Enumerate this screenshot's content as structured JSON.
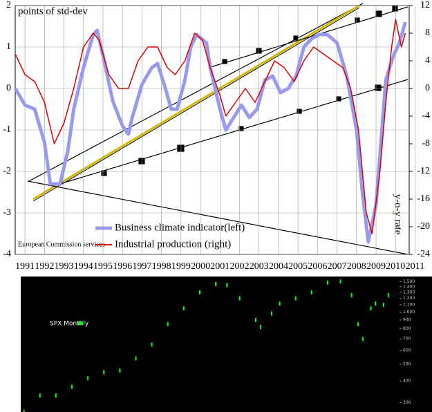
{
  "chart_data": [
    {
      "type": "line",
      "ylabel": "points of std-dev",
      "y2label": "y-o-y rate",
      "annotation": "European Commission services",
      "xlim": [
        1990.5,
        2010.7
      ],
      "xticks": [
        1991,
        1992,
        1993,
        1994,
        1995,
        1996,
        1997,
        1998,
        1999,
        2000,
        2001,
        2002,
        2003,
        2004,
        2005,
        2006,
        2007,
        2008,
        2009,
        2010,
        2011
      ],
      "ylim": [
        -4,
        2
      ],
      "yticks": [
        -4,
        -3,
        -2,
        -1,
        0,
        1,
        2
      ],
      "y2lim": [
        -24,
        12
      ],
      "y2ticks": [
        -24,
        -20,
        -16,
        -12,
        -8,
        -4,
        0,
        4,
        8,
        12
      ],
      "grid": true,
      "series": [
        {
          "name": "Business climate indicator(left)",
          "color": "#9999ee",
          "x": [
            1990.5,
            1991,
            1991.5,
            1992,
            1992.3,
            1992.8,
            1993.2,
            1993.5,
            1994,
            1994.5,
            1994.7,
            1995,
            1995.5,
            1996,
            1996.3,
            1996.5,
            1997,
            1997.5,
            1997.8,
            1998.2,
            1998.5,
            1998.8,
            1999.2,
            1999.5,
            1999.8,
            2000.3,
            2000.5,
            2001,
            2001.3,
            2001.7,
            2002.1,
            2002.5,
            2002.9,
            2003.3,
            2003.7,
            2004.1,
            2004.5,
            2004.9,
            2005.3,
            2005.7,
            2006.1,
            2006.5,
            2007,
            2007.5,
            2008,
            2008.3,
            2008.6,
            2009,
            2009.3,
            2009.5,
            2009.9,
            2010.2,
            2010.5
          ],
          "values": [
            0,
            -0.4,
            -0.5,
            -1.3,
            -2.3,
            -2.3,
            -1.5,
            -0.5,
            0.5,
            1.3,
            1.4,
            0.8,
            -0.3,
            -0.9,
            -1.1,
            -0.7,
            0.1,
            0.5,
            0.6,
            0,
            -0.5,
            -0.5,
            0.2,
            1,
            1.3,
            1.1,
            0.5,
            -0.5,
            -1,
            -0.7,
            -0.4,
            -0.7,
            -0.5,
            0.2,
            0.3,
            -0.1,
            0,
            0.3,
            1,
            1.2,
            1.3,
            1.3,
            1.1,
            0.3,
            -1,
            -2.5,
            -3.7,
            -2.8,
            -1,
            0.2,
            0.8,
            1.1,
            1.6
          ]
        },
        {
          "name": "Industrial production (right)",
          "color": "#dd0000",
          "axis": "y2",
          "x": [
            1990.5,
            1991,
            1991.5,
            1992,
            1992.5,
            1993,
            1993.5,
            1994,
            1994.5,
            1994.8,
            1995.3,
            1995.8,
            1996.3,
            1996.8,
            1997.3,
            1997.8,
            1998.3,
            1998.7,
            1999.2,
            1999.7,
            2000.1,
            2000.5,
            2001,
            2001.3,
            2001.8,
            2002.3,
            2002.8,
            2003.3,
            2003.8,
            2004.3,
            2004.8,
            2005.3,
            2005.8,
            2006.3,
            2006.8,
            2007.3,
            2007.7,
            2008.1,
            2008.5,
            2008.8,
            2009.2,
            2009.5,
            2009.8,
            2010,
            2010.3,
            2010.5
          ],
          "values": [
            5,
            2,
            1,
            -2,
            -8,
            -5,
            0,
            6,
            8,
            7,
            2,
            0,
            0,
            4,
            6,
            6,
            3,
            2,
            4,
            8,
            7,
            3,
            -1,
            -4,
            -2,
            0,
            -2,
            1,
            4,
            3,
            1,
            4,
            6,
            5,
            4,
            3,
            0,
            -6,
            -18,
            -21,
            -12,
            -2,
            6,
            10,
            6,
            8
          ]
        }
      ]
    },
    {
      "type": "scatter",
      "xlim": [
        1987.8,
        2011.5
      ],
      "ylim": [
        280,
        1560
      ],
      "log_scale": true,
      "yticks": [
        {
          "value": 1500,
          "label": "1,500"
        },
        {
          "value": 1400,
          "label": "1,400"
        },
        {
          "value": 1300,
          "label": "1,300"
        },
        {
          "value": 1200,
          "label": "1,200"
        },
        {
          "value": 1100,
          "label": "1,100"
        },
        {
          "value": 1000,
          "label": "1,000"
        },
        900,
        800,
        700,
        600,
        500,
        400,
        300
      ],
      "series": [
        {
          "name": "SPX Monthly",
          "color": "#00ff00",
          "x": [
            1988,
            1989,
            1990,
            1991,
            1992,
            1993,
            1994,
            1995,
            1996,
            1997,
            1998,
            1999,
            2000,
            2000.7,
            2001.5,
            2002.5,
            2002.8,
            2003.5,
            2004,
            2005,
            2006,
            2007,
            2007.8,
            2008.5,
            2008.9,
            2009.2,
            2009.7,
            2010,
            2010.5,
            2010.8
          ],
          "values": [
            265,
            330,
            330,
            370,
            415,
            450,
            460,
            540,
            650,
            850,
            1050,
            1300,
            1450,
            1430,
            1200,
            900,
            820,
            980,
            1120,
            1200,
            1300,
            1480,
            1500,
            1250,
            850,
            700,
            1050,
            1120,
            1100,
            1250
          ]
        }
      ]
    }
  ]
}
